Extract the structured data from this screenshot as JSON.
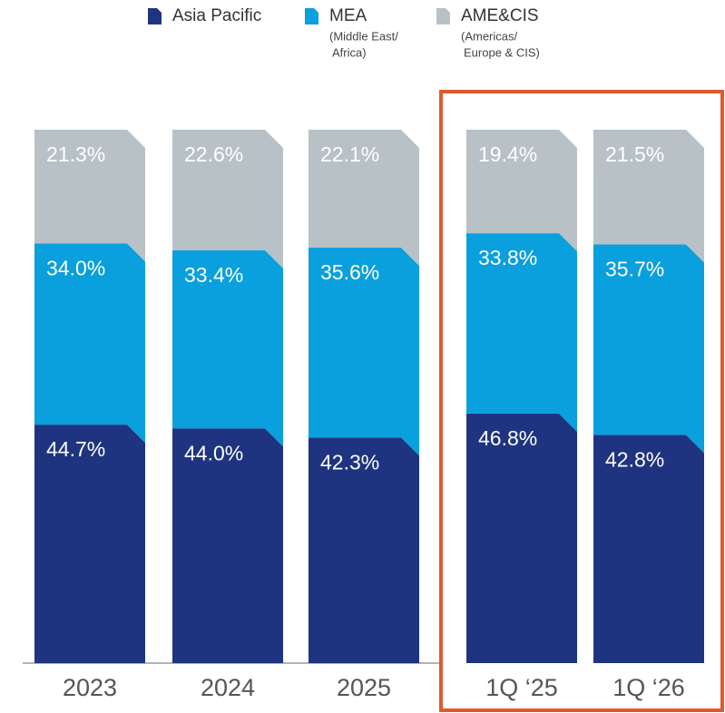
{
  "chart_data": {
    "type": "stacked_bar",
    "categories": [
      "2023",
      "2024",
      "2025",
      "1Q ‘25",
      "1Q ‘26"
    ],
    "ylim": [
      0,
      100
    ],
    "series": [
      {
        "name": "Asia Pacific",
        "color": "#1f3480",
        "values": [
          44.7,
          44.0,
          42.3,
          46.8,
          42.8
        ],
        "value_labels": [
          "44.7%",
          "44.0%",
          "42.3%",
          "46.8%",
          "42.8%"
        ]
      },
      {
        "name": "MEA",
        "note": [
          "(Middle East/",
          "Africa)"
        ],
        "color": "#0a9fdd",
        "values": [
          34.0,
          33.4,
          35.6,
          33.8,
          35.7
        ],
        "value_labels": [
          "34.0%",
          "33.4%",
          "35.6%",
          "33.8%",
          "35.7%"
        ]
      },
      {
        "name": "AME&CIS",
        "note": [
          "(Americas/",
          "Europe & CIS)"
        ],
        "color": "#b8c1c6",
        "values": [
          21.3,
          22.6,
          22.1,
          19.4,
          21.5
        ],
        "value_labels": [
          "21.3%",
          "22.6%",
          "22.1%",
          "19.4%",
          "21.5%"
        ]
      }
    ]
  }
}
